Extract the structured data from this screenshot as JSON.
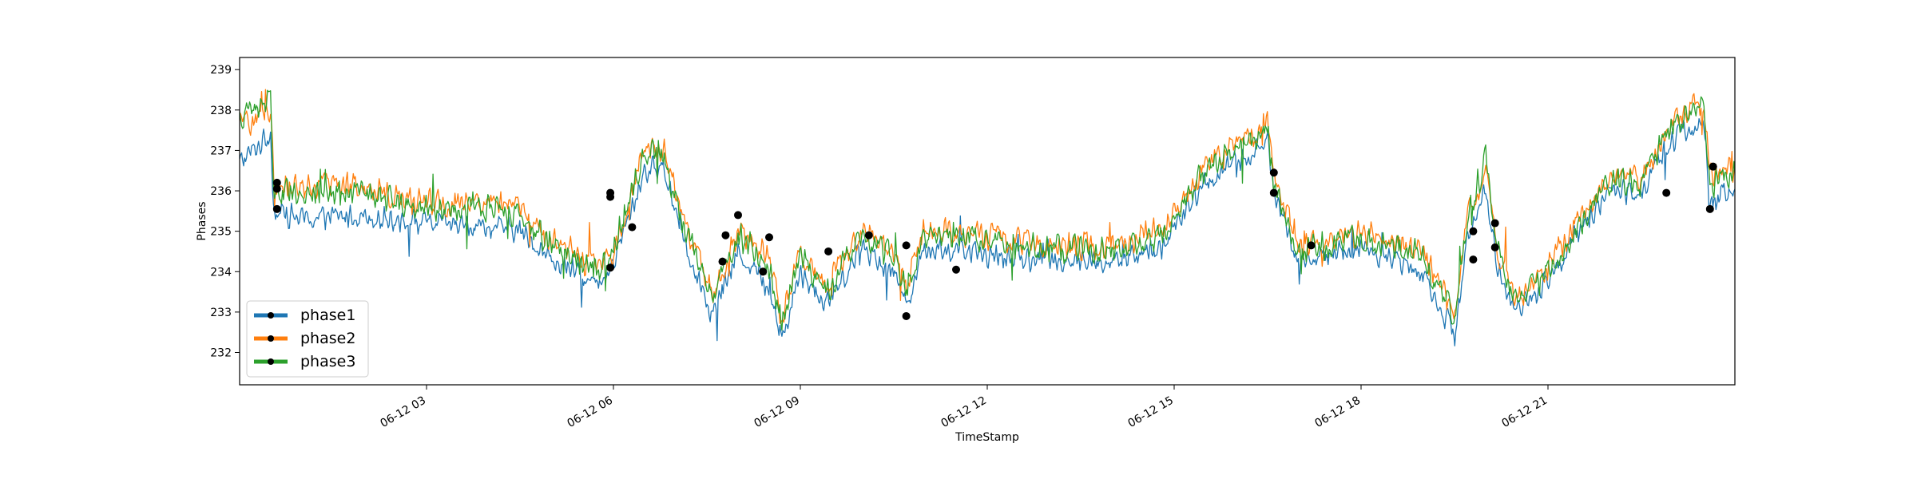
{
  "chart_data": {
    "type": "line",
    "title": "",
    "xlabel": "TimeStamp",
    "ylabel": "Phases",
    "x_range": [
      "2021-06-12 00:00",
      "2021-06-12 24:00"
    ],
    "x_ticks": [
      {
        "label": "06-12 03",
        "hour": 3
      },
      {
        "label": "06-12 06",
        "hour": 6
      },
      {
        "label": "06-12 09",
        "hour": 9
      },
      {
        "label": "06-12 12",
        "hour": 12
      },
      {
        "label": "06-12 15",
        "hour": 15
      },
      {
        "label": "06-12 18",
        "hour": 18
      },
      {
        "label": "06-12 21",
        "hour": 21
      }
    ],
    "ylim": [
      231.2,
      239.3
    ],
    "y_ticks": [
      232,
      233,
      234,
      235,
      236,
      237,
      238,
      239
    ],
    "grid": false,
    "legend_position": "bottom-left",
    "marker_color": "#000000",
    "series": [
      {
        "name": "phase1",
        "color": "#1f77b4",
        "noise": 0.35,
        "points": [
          {
            "hour": 0.0,
            "value": 236.7
          },
          {
            "hour": 0.5,
            "value": 237.4
          },
          {
            "hour": 0.55,
            "value": 235.5
          },
          {
            "hour": 1.0,
            "value": 235.3
          },
          {
            "hour": 2.0,
            "value": 235.4
          },
          {
            "hour": 3.0,
            "value": 235.2
          },
          {
            "hour": 4.0,
            "value": 235.1
          },
          {
            "hour": 4.5,
            "value": 235.0
          },
          {
            "hour": 5.0,
            "value": 234.3
          },
          {
            "hour": 5.8,
            "value": 233.6
          },
          {
            "hour": 6.0,
            "value": 234.2
          },
          {
            "hour": 6.5,
            "value": 236.5
          },
          {
            "hour": 6.8,
            "value": 236.6
          },
          {
            "hour": 7.2,
            "value": 234.5
          },
          {
            "hour": 7.6,
            "value": 232.9
          },
          {
            "hour": 8.0,
            "value": 234.5
          },
          {
            "hour": 8.5,
            "value": 233.6
          },
          {
            "hour": 8.7,
            "value": 232.3
          },
          {
            "hour": 9.0,
            "value": 234.0
          },
          {
            "hour": 9.4,
            "value": 233.2
          },
          {
            "hour": 10.0,
            "value": 234.6
          },
          {
            "hour": 10.5,
            "value": 234.0
          },
          {
            "hour": 10.7,
            "value": 233.2
          },
          {
            "hour": 11.0,
            "value": 234.6
          },
          {
            "hour": 12.0,
            "value": 234.4
          },
          {
            "hour": 13.0,
            "value": 234.3
          },
          {
            "hour": 14.0,
            "value": 234.2
          },
          {
            "hour": 14.8,
            "value": 234.6
          },
          {
            "hour": 15.5,
            "value": 236.2
          },
          {
            "hour": 16.5,
            "value": 237.2
          },
          {
            "hour": 16.6,
            "value": 236.0
          },
          {
            "hour": 17.0,
            "value": 234.2
          },
          {
            "hour": 18.0,
            "value": 234.6
          },
          {
            "hour": 19.0,
            "value": 234.0
          },
          {
            "hour": 19.5,
            "value": 232.4
          },
          {
            "hour": 19.7,
            "value": 234.9
          },
          {
            "hour": 20.0,
            "value": 236.0
          },
          {
            "hour": 20.2,
            "value": 234.0
          },
          {
            "hour": 20.5,
            "value": 233.0
          },
          {
            "hour": 21.0,
            "value": 233.8
          },
          {
            "hour": 21.5,
            "value": 235.0
          },
          {
            "hour": 22.0,
            "value": 236.0
          },
          {
            "hour": 22.5,
            "value": 236.0
          },
          {
            "hour": 23.0,
            "value": 237.3
          },
          {
            "hour": 23.5,
            "value": 237.7
          },
          {
            "hour": 23.6,
            "value": 235.6
          },
          {
            "hour": 24.0,
            "value": 236.2
          }
        ],
        "markers": [
          {
            "hour": 0.6,
            "value": 235.55
          },
          {
            "hour": 5.95,
            "value": 234.1
          },
          {
            "hour": 7.75,
            "value": 234.25
          },
          {
            "hour": 8.4,
            "value": 234.0
          },
          {
            "hour": 11.5,
            "value": 234.05
          },
          {
            "hour": 19.8,
            "value": 234.3
          },
          {
            "hour": 20.15,
            "value": 234.6
          },
          {
            "hour": 23.6,
            "value": 235.55
          }
        ]
      },
      {
        "name": "phase2",
        "color": "#ff7f0e",
        "noise": 0.4,
        "points": [
          {
            "hour": 0.0,
            "value": 237.6
          },
          {
            "hour": 0.5,
            "value": 238.0
          },
          {
            "hour": 0.55,
            "value": 236.2
          },
          {
            "hour": 1.0,
            "value": 236.1
          },
          {
            "hour": 2.0,
            "value": 236.1
          },
          {
            "hour": 3.0,
            "value": 235.7
          },
          {
            "hour": 4.0,
            "value": 235.7
          },
          {
            "hour": 4.5,
            "value": 235.6
          },
          {
            "hour": 5.0,
            "value": 234.8
          },
          {
            "hour": 5.8,
            "value": 234.0
          },
          {
            "hour": 6.0,
            "value": 234.5
          },
          {
            "hour": 6.5,
            "value": 237.1
          },
          {
            "hour": 6.8,
            "value": 237.0
          },
          {
            "hour": 7.2,
            "value": 235.0
          },
          {
            "hour": 7.6,
            "value": 233.4
          },
          {
            "hour": 8.0,
            "value": 235.0
          },
          {
            "hour": 8.5,
            "value": 234.4
          },
          {
            "hour": 8.7,
            "value": 232.8
          },
          {
            "hour": 9.0,
            "value": 234.5
          },
          {
            "hour": 9.4,
            "value": 233.6
          },
          {
            "hour": 10.0,
            "value": 235.0
          },
          {
            "hour": 10.5,
            "value": 234.5
          },
          {
            "hour": 10.7,
            "value": 233.6
          },
          {
            "hour": 11.0,
            "value": 235.1
          },
          {
            "hour": 12.0,
            "value": 234.9
          },
          {
            "hour": 13.0,
            "value": 234.7
          },
          {
            "hour": 14.0,
            "value": 234.6
          },
          {
            "hour": 14.8,
            "value": 235.0
          },
          {
            "hour": 15.5,
            "value": 236.7
          },
          {
            "hour": 16.5,
            "value": 237.7
          },
          {
            "hour": 16.6,
            "value": 236.4
          },
          {
            "hour": 17.0,
            "value": 234.6
          },
          {
            "hour": 18.0,
            "value": 235.0
          },
          {
            "hour": 19.0,
            "value": 234.5
          },
          {
            "hour": 19.5,
            "value": 232.9
          },
          {
            "hour": 19.7,
            "value": 235.4
          },
          {
            "hour": 20.0,
            "value": 236.5
          },
          {
            "hour": 20.2,
            "value": 234.5
          },
          {
            "hour": 20.5,
            "value": 233.3
          },
          {
            "hour": 21.0,
            "value": 234.1
          },
          {
            "hour": 21.5,
            "value": 235.3
          },
          {
            "hour": 22.0,
            "value": 236.3
          },
          {
            "hour": 22.5,
            "value": 236.3
          },
          {
            "hour": 23.0,
            "value": 237.7
          },
          {
            "hour": 23.5,
            "value": 238.2
          },
          {
            "hour": 23.6,
            "value": 236.3
          },
          {
            "hour": 24.0,
            "value": 236.6
          }
        ],
        "markers": [
          {
            "hour": 0.6,
            "value": 236.2
          },
          {
            "hour": 5.95,
            "value": 235.85
          },
          {
            "hour": 7.8,
            "value": 234.9
          },
          {
            "hour": 8.5,
            "value": 234.85
          },
          {
            "hour": 10.7,
            "value": 232.9
          },
          {
            "hour": 16.6,
            "value": 236.45
          },
          {
            "hour": 19.8,
            "value": 235.0
          },
          {
            "hour": 23.65,
            "value": 236.6
          }
        ]
      },
      {
        "name": "phase3",
        "color": "#2ca02c",
        "noise": 0.42,
        "points": [
          {
            "hour": 0.0,
            "value": 237.8
          },
          {
            "hour": 0.5,
            "value": 238.3
          },
          {
            "hour": 0.55,
            "value": 236.0
          },
          {
            "hour": 1.0,
            "value": 236.0
          },
          {
            "hour": 2.0,
            "value": 235.9
          },
          {
            "hour": 3.0,
            "value": 235.6
          },
          {
            "hour": 4.0,
            "value": 235.6
          },
          {
            "hour": 4.5,
            "value": 235.4
          },
          {
            "hour": 5.0,
            "value": 234.7
          },
          {
            "hour": 5.8,
            "value": 234.0
          },
          {
            "hour": 6.0,
            "value": 234.6
          },
          {
            "hour": 6.5,
            "value": 236.9
          },
          {
            "hour": 6.8,
            "value": 236.9
          },
          {
            "hour": 7.2,
            "value": 234.8
          },
          {
            "hour": 7.6,
            "value": 233.4
          },
          {
            "hour": 8.0,
            "value": 234.9
          },
          {
            "hour": 8.5,
            "value": 234.2
          },
          {
            "hour": 8.7,
            "value": 232.7
          },
          {
            "hour": 9.0,
            "value": 234.4
          },
          {
            "hour": 9.4,
            "value": 233.5
          },
          {
            "hour": 10.0,
            "value": 234.9
          },
          {
            "hour": 10.5,
            "value": 234.4
          },
          {
            "hour": 10.7,
            "value": 233.5
          },
          {
            "hour": 11.0,
            "value": 235.0
          },
          {
            "hour": 12.0,
            "value": 234.8
          },
          {
            "hour": 13.0,
            "value": 234.6
          },
          {
            "hour": 14.0,
            "value": 234.5
          },
          {
            "hour": 14.8,
            "value": 234.9
          },
          {
            "hour": 15.5,
            "value": 236.5
          },
          {
            "hour": 16.5,
            "value": 237.6
          },
          {
            "hour": 16.6,
            "value": 236.1
          },
          {
            "hour": 17.0,
            "value": 234.5
          },
          {
            "hour": 18.0,
            "value": 234.9
          },
          {
            "hour": 19.0,
            "value": 234.4
          },
          {
            "hour": 19.5,
            "value": 232.8
          },
          {
            "hour": 19.7,
            "value": 235.3
          },
          {
            "hour": 20.0,
            "value": 236.8
          },
          {
            "hour": 20.2,
            "value": 234.4
          },
          {
            "hour": 20.5,
            "value": 233.2
          },
          {
            "hour": 21.0,
            "value": 234.0
          },
          {
            "hour": 21.5,
            "value": 235.2
          },
          {
            "hour": 22.0,
            "value": 236.2
          },
          {
            "hour": 22.5,
            "value": 236.2
          },
          {
            "hour": 23.0,
            "value": 237.6
          },
          {
            "hour": 23.5,
            "value": 238.3
          },
          {
            "hour": 23.6,
            "value": 236.1
          },
          {
            "hour": 24.0,
            "value": 236.5
          }
        ],
        "markers": [
          {
            "hour": 0.6,
            "value": 236.05
          },
          {
            "hour": 5.95,
            "value": 235.95
          },
          {
            "hour": 6.3,
            "value": 235.1
          },
          {
            "hour": 8.0,
            "value": 235.4
          },
          {
            "hour": 9.45,
            "value": 234.5
          },
          {
            "hour": 10.1,
            "value": 234.9
          },
          {
            "hour": 10.7,
            "value": 234.65
          },
          {
            "hour": 16.6,
            "value": 235.95
          },
          {
            "hour": 17.2,
            "value": 234.65
          },
          {
            "hour": 20.15,
            "value": 235.2
          },
          {
            "hour": 22.9,
            "value": 235.95
          }
        ]
      }
    ]
  }
}
